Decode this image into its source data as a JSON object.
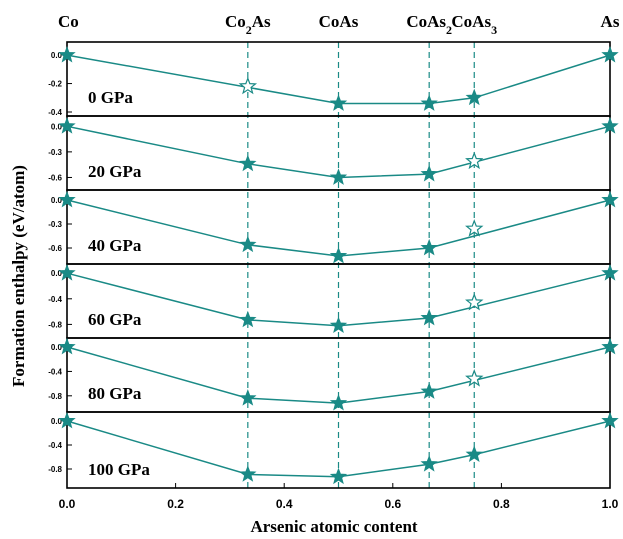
{
  "chart_data": {
    "type": "line",
    "xlabel": "Arsenic atomic content",
    "ylabel": "Formation enthalpy (eV/atom)",
    "xlim": [
      0.0,
      1.0
    ],
    "x_ticks": [
      "0.0",
      "0.2",
      "0.4",
      "0.6",
      "0.8",
      "1.0"
    ],
    "phase_markers": [
      {
        "label": "Co",
        "x": 0.0
      },
      {
        "label": "Co2As",
        "x": 0.333
      },
      {
        "label": "CoAs",
        "x": 0.5
      },
      {
        "label": "CoAs2",
        "x": 0.667
      },
      {
        "label": "CoAs3",
        "x": 0.75
      },
      {
        "label": "As",
        "x": 1.0
      }
    ],
    "color": "#1a8a86",
    "panels": [
      {
        "pressure": "0 GPa",
        "ylim": [
          -0.4,
          0.05
        ],
        "yticks": [
          "0.0",
          "-0.2",
          "-0.4"
        ],
        "ytick_values": [
          0.0,
          -0.2,
          -0.4
        ],
        "points": [
          {
            "x": 0.0,
            "y": 0.0,
            "filled": true
          },
          {
            "x": 0.333,
            "y": -0.22,
            "filled": false
          },
          {
            "x": 0.5,
            "y": -0.34,
            "filled": true
          },
          {
            "x": 0.667,
            "y": -0.34,
            "filled": true
          },
          {
            "x": 0.75,
            "y": -0.3,
            "filled": true
          },
          {
            "x": 1.0,
            "y": 0.0,
            "filled": true
          }
        ],
        "hull": [
          0.0,
          0.5,
          0.667,
          0.75,
          1.0
        ]
      },
      {
        "pressure": "20 GPa",
        "ylim": [
          -0.7,
          0.05
        ],
        "yticks": [
          "0.0",
          "-0.3",
          "-0.6"
        ],
        "ytick_values": [
          0.0,
          -0.3,
          -0.6
        ],
        "points": [
          {
            "x": 0.0,
            "y": 0.0,
            "filled": true
          },
          {
            "x": 0.333,
            "y": -0.44,
            "filled": true
          },
          {
            "x": 0.5,
            "y": -0.6,
            "filled": true
          },
          {
            "x": 0.667,
            "y": -0.56,
            "filled": true
          },
          {
            "x": 0.75,
            "y": -0.41,
            "filled": false
          },
          {
            "x": 1.0,
            "y": 0.0,
            "filled": true
          }
        ],
        "hull": [
          0.0,
          0.333,
          0.5,
          0.667,
          1.0
        ]
      },
      {
        "pressure": "40 GPa",
        "ylim": [
          -0.75,
          0.05
        ],
        "yticks": [
          "0.0",
          "-0.3",
          "-0.6"
        ],
        "ytick_values": [
          0.0,
          -0.3,
          -0.6
        ],
        "points": [
          {
            "x": 0.0,
            "y": 0.0,
            "filled": true
          },
          {
            "x": 0.333,
            "y": -0.56,
            "filled": true
          },
          {
            "x": 0.5,
            "y": -0.7,
            "filled": true
          },
          {
            "x": 0.667,
            "y": -0.6,
            "filled": true
          },
          {
            "x": 0.75,
            "y": -0.36,
            "filled": false
          },
          {
            "x": 1.0,
            "y": 0.0,
            "filled": true
          }
        ],
        "hull": [
          0.0,
          0.333,
          0.5,
          0.667,
          1.0
        ]
      },
      {
        "pressure": "60 GPa",
        "ylim": [
          -0.95,
          0.05
        ],
        "yticks": [
          "0.0",
          "-0.4",
          "-0.8"
        ],
        "ytick_values": [
          0.0,
          -0.4,
          -0.8
        ],
        "points": [
          {
            "x": 0.0,
            "y": 0.0,
            "filled": true
          },
          {
            "x": 0.333,
            "y": -0.73,
            "filled": true
          },
          {
            "x": 0.5,
            "y": -0.82,
            "filled": true
          },
          {
            "x": 0.667,
            "y": -0.7,
            "filled": true
          },
          {
            "x": 0.75,
            "y": -0.46,
            "filled": false
          },
          {
            "x": 1.0,
            "y": 0.0,
            "filled": true
          }
        ],
        "hull": [
          0.0,
          0.333,
          0.5,
          0.667,
          1.0
        ]
      },
      {
        "pressure": "80 GPa",
        "ylim": [
          -1.0,
          0.05
        ],
        "yticks": [
          "0.0",
          "-0.4",
          "-0.8"
        ],
        "ytick_values": [
          0.0,
          -0.4,
          -0.8
        ],
        "points": [
          {
            "x": 0.0,
            "y": 0.0,
            "filled": true
          },
          {
            "x": 0.333,
            "y": -0.84,
            "filled": true
          },
          {
            "x": 0.5,
            "y": -0.92,
            "filled": true
          },
          {
            "x": 0.667,
            "y": -0.73,
            "filled": true
          },
          {
            "x": 0.75,
            "y": -0.52,
            "filled": false
          },
          {
            "x": 1.0,
            "y": 0.0,
            "filled": true
          }
        ],
        "hull": [
          0.0,
          0.333,
          0.5,
          0.667,
          1.0
        ]
      },
      {
        "pressure": "100 GPa",
        "ylim": [
          -1.05,
          0.05
        ],
        "yticks": [
          "0.0",
          "-0.4",
          "-0.8"
        ],
        "ytick_values": [
          0.0,
          -0.4,
          -0.8
        ],
        "points": [
          {
            "x": 0.0,
            "y": 0.0,
            "filled": true
          },
          {
            "x": 0.333,
            "y": -0.89,
            "filled": true
          },
          {
            "x": 0.5,
            "y": -0.93,
            "filled": true
          },
          {
            "x": 0.667,
            "y": -0.72,
            "filled": true
          },
          {
            "x": 0.75,
            "y": -0.56,
            "filled": true
          },
          {
            "x": 1.0,
            "y": 0.0,
            "filled": true
          }
        ],
        "hull": [
          0.0,
          0.333,
          0.5,
          0.667,
          0.75,
          1.0
        ]
      }
    ]
  }
}
